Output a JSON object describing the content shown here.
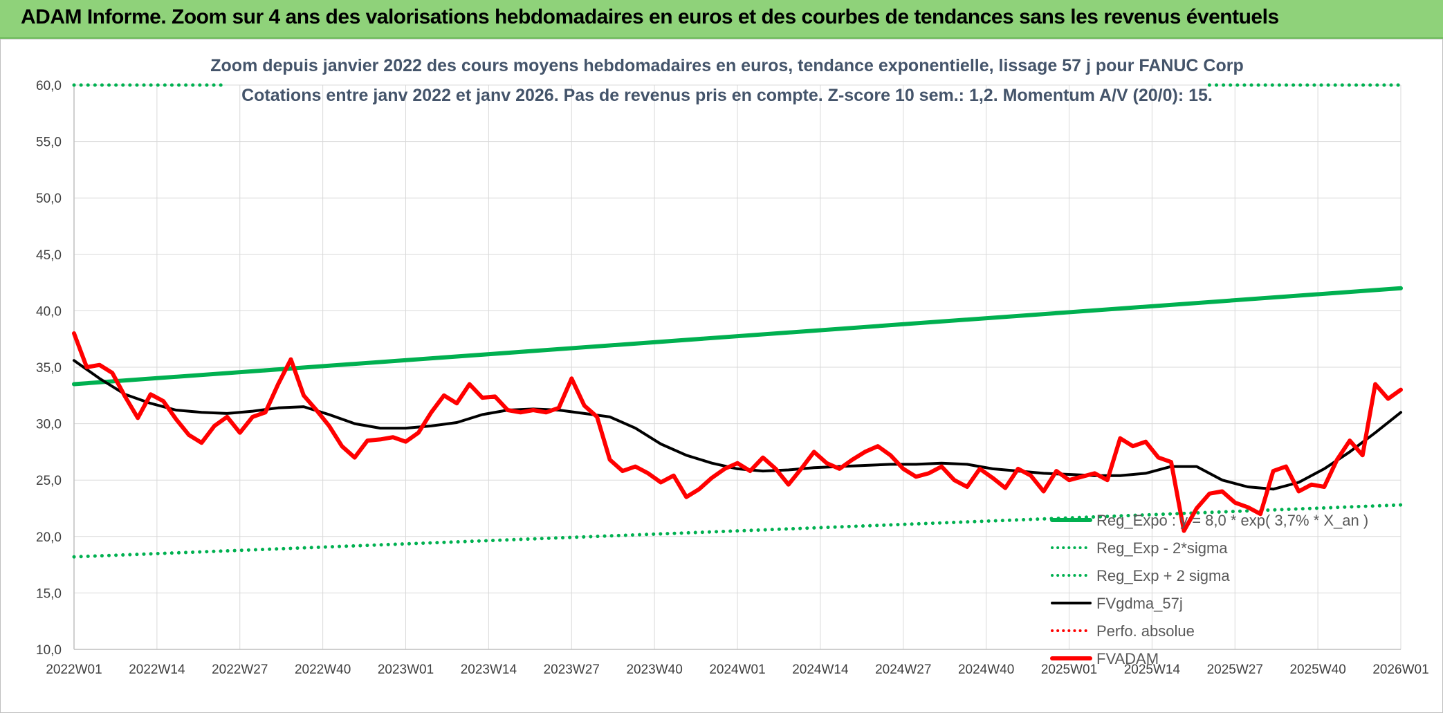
{
  "banner": {
    "title": "ADAM Informe. Zoom sur 4 ans des valorisations hebdomadaires en euros et des courbes de tendances sans les revenus éventuels"
  },
  "chart_data": {
    "type": "line",
    "title": "Zoom depuis janvier 2022 des cours moyens hebdomadaires en euros, tendance exponentielle, lissage 57 j pour FANUC Corp",
    "subtitle": "Cotations entre janv 2022 et janv 2026. Pas de revenus pris en compte. Z-score 10 sem.: 1,2. Momentum A/V (20/0): 15.",
    "xlabel": "",
    "ylabel": "",
    "ylim": [
      10,
      60
    ],
    "y_ticks": [
      "60,0",
      "55,0",
      "50,0",
      "45,0",
      "40,0",
      "35,0",
      "30,0",
      "25,0",
      "20,0",
      "15,0",
      "10,0"
    ],
    "x_ticks": [
      "2022W01",
      "2022W14",
      "2022W27",
      "2022W40",
      "2023W01",
      "2023W14",
      "2023W27",
      "2023W40",
      "2024W01",
      "2024W14",
      "2024W27",
      "2024W40",
      "2025W01",
      "2025W14",
      "2025W27",
      "2025W40",
      "2026W01"
    ],
    "x_range_weeks": [
      0,
      208
    ],
    "grid": true,
    "legend_position": "right-inside-bottom",
    "series": [
      {
        "name": "Reg_Expo : y = 8,0 * exp( 3,7% * X_an )",
        "color": "#00b050",
        "style": "solid",
        "x": [
          0,
          208
        ],
        "y": [
          33.5,
          42.0
        ]
      },
      {
        "name": "Reg_Exp - 2*sigma",
        "color": "#00b050",
        "style": "dotted",
        "x": [
          0,
          208
        ],
        "y": [
          18.2,
          22.8
        ]
      },
      {
        "name": "Reg_Exp + 2 sigma",
        "color": "#00b050",
        "style": "dotted",
        "x": [
          0,
          24,
          178,
          208
        ],
        "y": [
          60,
          60,
          60,
          60
        ],
        "gap_between": [
          24,
          178
        ]
      },
      {
        "name": "FVgdma_57j",
        "color": "#000000",
        "style": "solid",
        "x": [
          0,
          4,
          8,
          12,
          16,
          20,
          24,
          28,
          32,
          36,
          40,
          44,
          48,
          52,
          56,
          60,
          64,
          68,
          72,
          76,
          80,
          84,
          88,
          92,
          96,
          100,
          104,
          108,
          112,
          116,
          120,
          124,
          128,
          132,
          136,
          140,
          144,
          148,
          152,
          156,
          160,
          164,
          168,
          172,
          176,
          180,
          184,
          188,
          192,
          196,
          200,
          204,
          208
        ],
        "y": [
          35.6,
          34.0,
          32.6,
          31.8,
          31.2,
          31.0,
          30.9,
          31.1,
          31.4,
          31.5,
          30.8,
          30.0,
          29.6,
          29.6,
          29.8,
          30.1,
          30.8,
          31.2,
          31.3,
          31.2,
          30.9,
          30.6,
          29.6,
          28.2,
          27.2,
          26.5,
          26.0,
          25.8,
          25.9,
          26.1,
          26.2,
          26.3,
          26.4,
          26.4,
          26.5,
          26.4,
          26.0,
          25.8,
          25.6,
          25.5,
          25.4,
          25.4,
          25.6,
          26.2,
          26.2,
          25.0,
          24.4,
          24.2,
          24.8,
          26.0,
          27.5,
          29.2,
          31.0
        ]
      },
      {
        "name": "Perfo. absolue",
        "color": "#ff0000",
        "style": "dotted",
        "x": [],
        "y": []
      },
      {
        "name": "FVADAM",
        "color": "#ff0000",
        "style": "solid",
        "x": [
          0,
          2,
          4,
          6,
          8,
          10,
          12,
          14,
          16,
          18,
          20,
          22,
          24,
          26,
          28,
          30,
          32,
          34,
          36,
          38,
          40,
          42,
          44,
          46,
          48,
          50,
          52,
          54,
          56,
          58,
          60,
          62,
          64,
          66,
          68,
          70,
          72,
          74,
          76,
          78,
          80,
          82,
          84,
          86,
          88,
          90,
          92,
          94,
          96,
          98,
          100,
          102,
          104,
          106,
          108,
          110,
          112,
          114,
          116,
          118,
          120,
          122,
          124,
          126,
          128,
          130,
          132,
          134,
          136,
          138,
          140,
          142,
          144,
          146,
          148,
          150,
          152,
          154,
          156,
          158,
          160,
          162,
          164,
          166,
          168,
          170,
          172,
          174,
          176,
          178,
          180,
          182,
          184,
          186,
          188,
          190,
          192,
          194,
          196,
          198,
          200,
          202,
          204,
          206,
          208
        ],
        "y": [
          38.0,
          35.0,
          35.2,
          34.5,
          32.4,
          30.5,
          32.6,
          32.0,
          30.4,
          29.0,
          28.3,
          29.8,
          30.6,
          29.2,
          30.6,
          31.0,
          33.5,
          35.7,
          32.5,
          31.2,
          29.8,
          28.0,
          27.0,
          28.5,
          28.6,
          28.8,
          28.4,
          29.2,
          31.0,
          32.5,
          31.8,
          33.5,
          32.3,
          32.4,
          31.2,
          31.0,
          31.2,
          31.0,
          31.4,
          34.0,
          31.6,
          30.6,
          26.8,
          25.8,
          26.2,
          25.6,
          24.8,
          25.4,
          23.5,
          24.2,
          25.2,
          26.0,
          26.5,
          25.8,
          27.0,
          26.0,
          24.6,
          26.0,
          27.5,
          26.5,
          26.0,
          26.8,
          27.5,
          28.0,
          27.2,
          26.0,
          25.3,
          25.6,
          26.2,
          25.0,
          24.4,
          26.0,
          25.2,
          24.3,
          26.0,
          25.4,
          24.0,
          25.8,
          25.0,
          25.3,
          25.6,
          25.0,
          28.7,
          28.0,
          28.4,
          27.0,
          26.6,
          20.5,
          22.5,
          23.8,
          24.0,
          23.0,
          22.6,
          22.0,
          25.8,
          26.2,
          24.0,
          24.6,
          24.4,
          26.8,
          28.5,
          27.2,
          33.5,
          32.2,
          33.0
        ]
      }
    ]
  }
}
